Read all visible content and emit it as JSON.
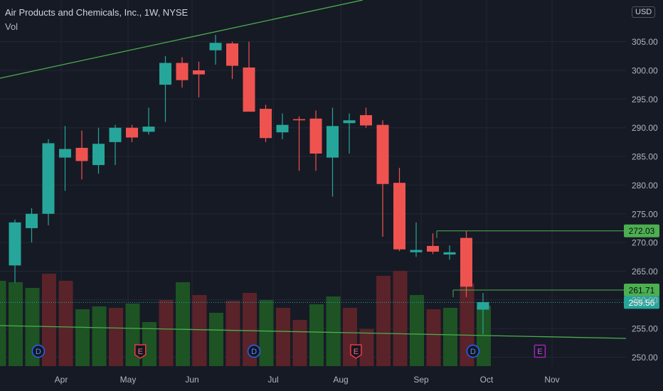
{
  "header": {
    "title": "Air Products and Chemicals, Inc., 1W, NYSE",
    "volume_label": "Vol",
    "currency": "USD"
  },
  "colors": {
    "background": "#161a25",
    "grid": "#232734",
    "axis_text": "#b2b5be",
    "up": "#26a69a",
    "down": "#ef5350",
    "vol_up": "#1e5324",
    "vol_down": "#5a2329",
    "trendline": "#4caf50",
    "event_dividend": "#2962ff",
    "event_earnings": "#f23645",
    "event_earnings_upcoming": "#9c27b0"
  },
  "chart_data": {
    "type": "candlestick",
    "title": "Air Products and Chemicals, Inc., 1W, NYSE",
    "interval": "1W",
    "exchange": "NYSE",
    "ylim": [
      248,
      311
    ],
    "y_ticks": [
      "250.00",
      "255.00",
      "260.00",
      "265.00",
      "270.00",
      "275.00",
      "280.00",
      "285.00",
      "290.00",
      "295.00",
      "300.00",
      "305.00"
    ],
    "x_ticks": [
      "Apr",
      "May",
      "Jun",
      "Jul",
      "Aug",
      "Sep",
      "Oct",
      "Nov"
    ],
    "candles": [
      {
        "open": 266.0,
        "high": 274.0,
        "low": 263.0,
        "close": 273.5
      },
      {
        "open": 272.5,
        "high": 276.0,
        "low": 270.0,
        "close": 275.0
      },
      {
        "open": 275.0,
        "high": 288.0,
        "low": 273.0,
        "close": 287.3
      },
      {
        "open": 284.8,
        "high": 290.3,
        "low": 279.0,
        "close": 286.3
      },
      {
        "open": 286.5,
        "high": 289.5,
        "low": 281.0,
        "close": 284.2
      },
      {
        "open": 283.5,
        "high": 290.0,
        "low": 282.0,
        "close": 287.2
      },
      {
        "open": 287.5,
        "high": 290.5,
        "low": 283.5,
        "close": 290.0
      },
      {
        "open": 290.0,
        "high": 290.5,
        "low": 287.5,
        "close": 288.3
      },
      {
        "open": 289.3,
        "high": 293.5,
        "low": 288.8,
        "close": 290.2
      },
      {
        "open": 297.5,
        "high": 302.5,
        "low": 291.0,
        "close": 301.3
      },
      {
        "open": 301.3,
        "high": 302.3,
        "low": 297.0,
        "close": 298.3
      },
      {
        "open": 300.0,
        "high": 301.5,
        "low": 295.3,
        "close": 299.3
      },
      {
        "open": 303.5,
        "high": 306.2,
        "low": 301.0,
        "close": 304.8
      },
      {
        "open": 304.7,
        "high": 305.0,
        "low": 298.5,
        "close": 300.8
      },
      {
        "open": 300.5,
        "high": 305.0,
        "low": 293.0,
        "close": 292.8
      },
      {
        "open": 293.3,
        "high": 294.0,
        "low": 287.5,
        "close": 288.2
      },
      {
        "open": 289.2,
        "high": 292.5,
        "low": 288.0,
        "close": 290.5
      },
      {
        "open": 291.5,
        "high": 292.0,
        "low": 282.5,
        "close": 291.3
      },
      {
        "open": 291.6,
        "high": 293.0,
        "low": 282.5,
        "close": 285.5
      },
      {
        "open": 284.8,
        "high": 293.5,
        "low": 278.0,
        "close": 290.3
      },
      {
        "open": 290.8,
        "high": 292.5,
        "low": 285.5,
        "close": 291.3
      },
      {
        "open": 292.2,
        "high": 293.5,
        "low": 290.0,
        "close": 290.4
      },
      {
        "open": 290.5,
        "high": 291.3,
        "low": 271.0,
        "close": 280.2
      },
      {
        "open": 280.4,
        "high": 283.0,
        "low": 268.5,
        "close": 268.8
      },
      {
        "open": 268.3,
        "high": 273.5,
        "low": 267.5,
        "close": 268.7
      },
      {
        "open": 269.4,
        "high": 271.6,
        "low": 268.0,
        "close": 268.4
      },
      {
        "open": 267.9,
        "high": 269.5,
        "low": 267.0,
        "close": 268.3
      },
      {
        "open": 270.8,
        "high": 272.0,
        "low": 260.5,
        "close": 262.3
      },
      {
        "open": 258.3,
        "high": 261.2,
        "low": 254.0,
        "close": 259.6
      }
    ],
    "price_labels": [
      {
        "text": "272.03",
        "value": 272.03,
        "kind": "line"
      },
      {
        "text": "261.71",
        "value": 261.71,
        "kind": "line"
      },
      {
        "text": "259.56",
        "value": 259.56,
        "kind": "last"
      }
    ],
    "events": [
      {
        "type": "dividend",
        "label": "D",
        "week": 2.4
      },
      {
        "type": "earnings",
        "label": "E",
        "week": 8.5
      },
      {
        "type": "dividend",
        "label": "D",
        "week": 15.3
      },
      {
        "type": "earnings",
        "label": "E",
        "week": 21.4
      },
      {
        "type": "dividend",
        "label": "D",
        "week": 28.4
      },
      {
        "type": "earnings",
        "label": "E",
        "week": 32.4,
        "upcoming": true
      }
    ]
  }
}
